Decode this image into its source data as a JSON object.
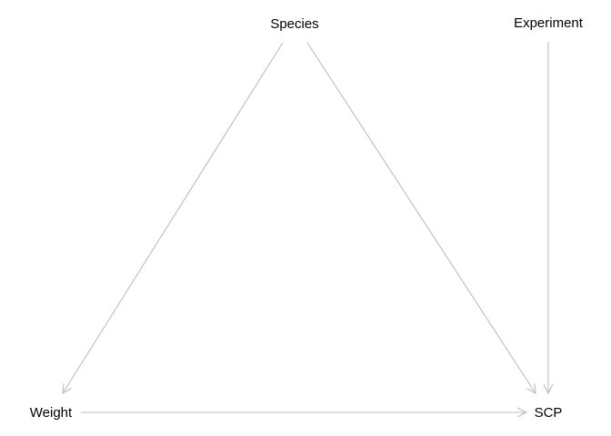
{
  "diagram": {
    "type": "directed-graph",
    "edge_color": "#bdbdbd",
    "label_color": "#000000",
    "nodes": [
      {
        "id": "species",
        "label": "Species"
      },
      {
        "id": "experiment",
        "label": "Experiment"
      },
      {
        "id": "weight",
        "label": "Weight"
      },
      {
        "id": "scp",
        "label": "SCP"
      }
    ],
    "edges": [
      {
        "from": "species",
        "to": "weight"
      },
      {
        "from": "species",
        "to": "scp"
      },
      {
        "from": "experiment",
        "to": "scp"
      },
      {
        "from": "weight",
        "to": "scp"
      }
    ]
  }
}
